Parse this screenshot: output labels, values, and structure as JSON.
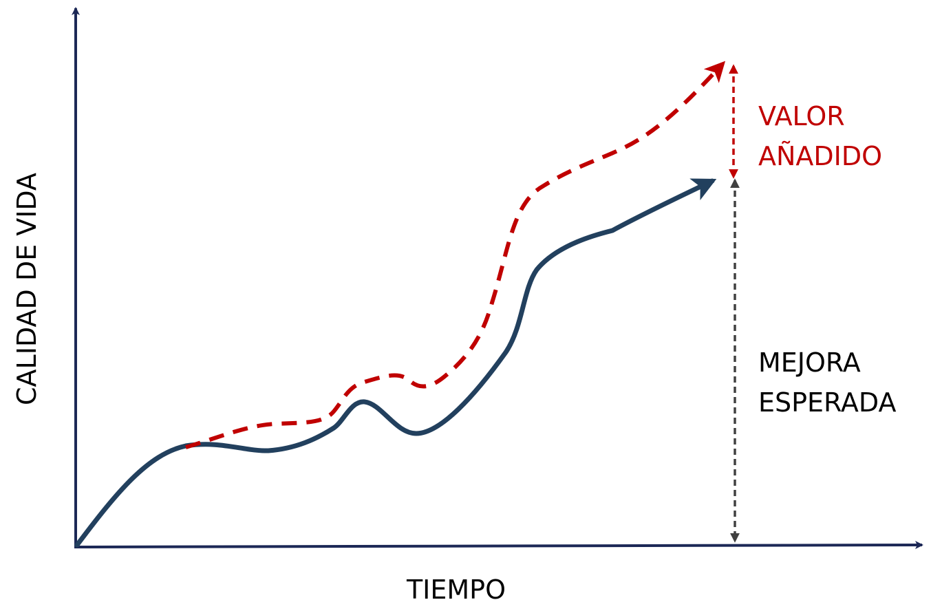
{
  "axes": {
    "x_label": "TIEMPO",
    "y_label": "CALIDAD DE VIDA"
  },
  "annotations": {
    "added_value": {
      "line1": "VALOR",
      "line2": "AÑADIDO"
    },
    "expected_improvement": {
      "line1": "MEJORA",
      "line2": "ESPERADA"
    }
  },
  "colors": {
    "axis": "#1c2856",
    "baseline_curve": "#22405e",
    "improved_curve": "#c00000",
    "added_value_text": "#c00000",
    "expected_arrow": "#404040",
    "expected_text": "#000000"
  }
}
